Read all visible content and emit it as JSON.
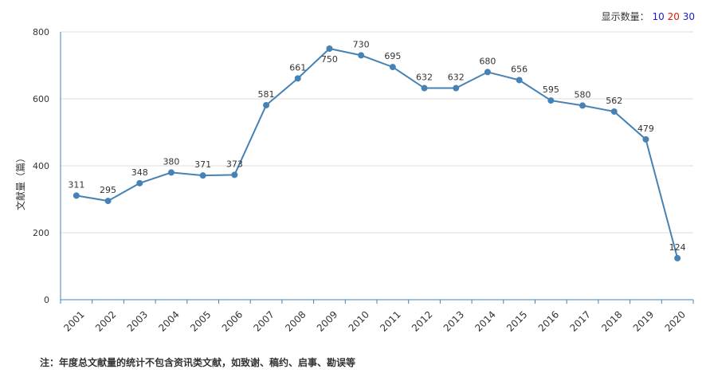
{
  "controls": {
    "count_label": "显示数量：",
    "options": [
      {
        "label": "10",
        "color": "#1a1acc"
      },
      {
        "label": "20",
        "color": "#d81e06"
      },
      {
        "label": "30",
        "color": "#1a1acc"
      }
    ]
  },
  "note": "注：年度总文献量的统计不包含资讯类文献，如致谢、稿约、启事、勘误等",
  "chart_data": {
    "type": "line",
    "x": [
      "2001",
      "2002",
      "2003",
      "2004",
      "2005",
      "2006",
      "2007",
      "2008",
      "2009",
      "2010",
      "2011",
      "2012",
      "2013",
      "2014",
      "2015",
      "2016",
      "2017",
      "2018",
      "2019",
      "2020"
    ],
    "series": [
      {
        "values": [
          311,
          295,
          348,
          380,
          371,
          373,
          581,
          661,
          750,
          730,
          695,
          632,
          632,
          680,
          656,
          595,
          580,
          562,
          479,
          124
        ]
      }
    ],
    "ylabel": "文献量（篇）",
    "ylim": [
      0,
      800
    ],
    "yticks": [
      0,
      200,
      400,
      600,
      800
    ],
    "grid": true,
    "line_color": "#4682b4"
  }
}
